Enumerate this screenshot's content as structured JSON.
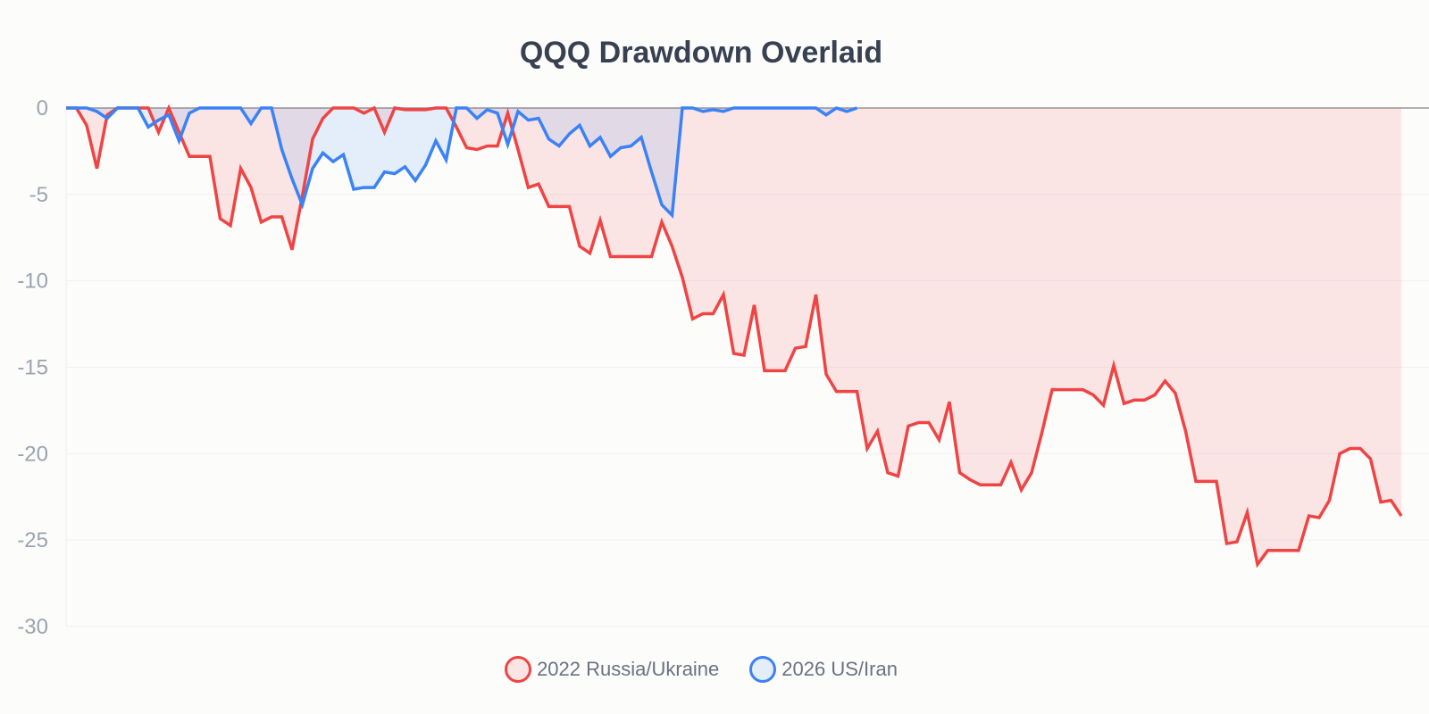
{
  "chart_data": {
    "type": "area",
    "title": "QQQ Drawdown Overlaid",
    "xlabel": "",
    "ylabel": "",
    "ylim": [
      -30,
      0
    ],
    "yticks": [
      "0",
      "-5",
      "-10",
      "-15",
      "-20",
      "-25",
      "-30"
    ],
    "ytick_values": [
      0,
      -5,
      -10,
      -15,
      -20,
      -25,
      -30
    ],
    "grid": true,
    "legend_position": "bottom",
    "series": [
      {
        "name": "2022 Russia/Ukraine",
        "color": "#ef4444",
        "fill": "rgba(239,68,68,0.12)",
        "values": [
          0,
          0,
          -1.0,
          -3.5,
          -0.4,
          0,
          0,
          0,
          0,
          -1.4,
          0,
          -1.4,
          -2.8,
          -2.8,
          -2.8,
          -6.4,
          -6.8,
          -3.5,
          -4.6,
          -6.6,
          -6.3,
          -6.3,
          -8.2,
          -5.1,
          -1.8,
          -0.6,
          0,
          0,
          0,
          -0.3,
          0,
          -1.4,
          0,
          -0.1,
          -0.1,
          -0.1,
          0,
          0,
          -1.1,
          -2.3,
          -2.4,
          -2.2,
          -2.2,
          -0.3,
          -2.4,
          -4.6,
          -4.4,
          -5.7,
          -5.7,
          -5.7,
          -8.0,
          -8.4,
          -6.5,
          -8.6,
          -8.6,
          -8.6,
          -8.6,
          -8.6,
          -6.6,
          -8.0,
          -9.8,
          -12.2,
          -11.9,
          -11.9,
          -10.8,
          -14.2,
          -14.3,
          -11.4,
          -15.2,
          -15.2,
          -15.2,
          -13.9,
          -13.8,
          -10.8,
          -15.4,
          -16.4,
          -16.4,
          -16.4,
          -19.7,
          -18.7,
          -21.1,
          -21.3,
          -18.4,
          -18.2,
          -18.2,
          -19.2,
          -17.0,
          -21.1,
          -21.5,
          -21.8,
          -21.8,
          -21.8,
          -20.5,
          -22.1,
          -21.1,
          -18.8,
          -16.3,
          -16.3,
          -16.3,
          -16.3,
          -16.6,
          -17.2,
          -14.9,
          -17.1,
          -16.9,
          -16.9,
          -16.6,
          -15.8,
          -16.5,
          -18.7,
          -21.6,
          -21.6,
          -21.6,
          -25.2,
          -25.1,
          -23.4,
          -26.4,
          -25.6,
          -25.6,
          -25.6,
          -25.6,
          -23.6,
          -23.7,
          -22.7,
          -20.0,
          -19.7,
          -19.7,
          -20.3,
          -22.8,
          -22.7,
          -23.6
        ]
      },
      {
        "name": "2026 US/Iran",
        "color": "#3b82f6",
        "fill": "rgba(59,130,246,0.12)",
        "values": [
          0,
          0,
          0,
          -0.2,
          -0.6,
          0,
          0,
          0,
          -1.1,
          -0.7,
          -0.4,
          -1.9,
          -0.3,
          0,
          0,
          0,
          0,
          0,
          -0.9,
          0,
          0,
          -2.4,
          -4.1,
          -5.6,
          -3.5,
          -2.6,
          -3.1,
          -2.7,
          -4.7,
          -4.6,
          -4.6,
          -3.7,
          -3.8,
          -3.4,
          -4.2,
          -3.3,
          -1.9,
          -3.0,
          0,
          0,
          -0.6,
          -0.1,
          -0.3,
          -2.1,
          -0.2,
          -0.7,
          -0.6,
          -1.8,
          -2.2,
          -1.5,
          -1.0,
          -2.2,
          -1.7,
          -2.8,
          -2.3,
          -2.2,
          -1.7,
          -3.7,
          -5.6,
          -6.2,
          0,
          0,
          -0.2,
          -0.1,
          -0.2,
          0,
          0,
          0,
          0,
          0,
          0,
          0,
          0,
          0,
          -0.4,
          0,
          -0.2,
          0
        ]
      }
    ]
  }
}
